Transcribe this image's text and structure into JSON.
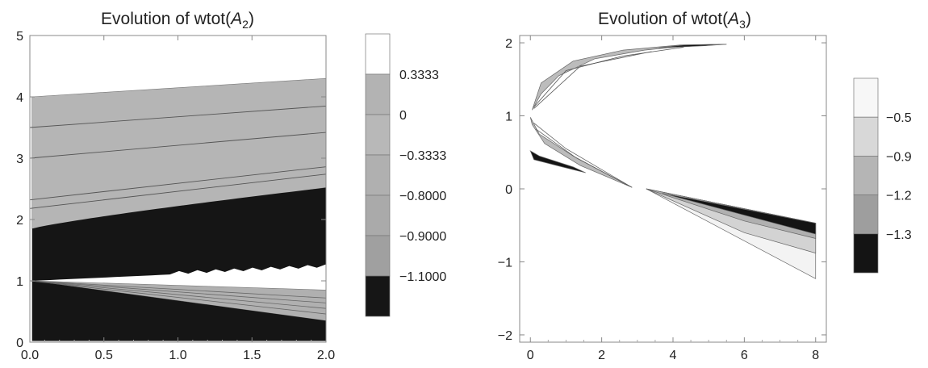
{
  "chart_data": [
    {
      "type": "contour",
      "title": "Evolution of wtot(A2)",
      "title_parts": {
        "prefix": "Evolution of wtot(",
        "var": "A",
        "sub": "2",
        "suffix": ")"
      },
      "xlim": [
        0,
        2
      ],
      "ylim": [
        0,
        5
      ],
      "x_ticks": [
        "0.0",
        "0.5",
        "1.0",
        "1.5",
        "2.0"
      ],
      "y_ticks": [
        "0",
        "1",
        "2",
        "3",
        "4",
        "5"
      ],
      "legend_levels": [
        "0.3333",
        "0",
        "-0.3333",
        "-0.8000",
        "-0.9000",
        "-1.1000"
      ],
      "legend_labels": [
        "0.3333",
        "0",
        "−0.3333",
        "−0.8000",
        "−0.9000",
        "−1.1000"
      ],
      "legend_colors": [
        "#ffffff",
        "#b3b3b3",
        "#b8b8b8",
        "#b0b0b0",
        "#aaaaaa",
        "#a0a0a0",
        "#161616"
      ],
      "regions": {
        "upper_band": {
          "y_at_x0": [
            1.85,
            4.0
          ],
          "y_at_x2": [
            2.52,
            4.3
          ],
          "color": "#b5b5b5"
        },
        "upper_dark": {
          "y_at_x0": [
            1.0,
            1.85
          ],
          "y_at_x2": [
            1.2,
            2.52
          ],
          "color": "#151515"
        },
        "lower_band": {
          "y_at_x0": [
            1.0,
            1.0
          ],
          "y_at_x2": [
            0.35,
            0.85
          ],
          "color": "#b0b0b0"
        },
        "lower_dark": {
          "y_at_x0": [
            0.0,
            1.0
          ],
          "y_at_x2": [
            0.0,
            0.35
          ],
          "color": "#151515"
        }
      },
      "contour_lines_upper": [
        {
          "x": [
            0,
            2
          ],
          "y": [
            3.5,
            3.85
          ]
        },
        {
          "x": [
            0,
            2
          ],
          "y": [
            3.0,
            3.42
          ]
        },
        {
          "x": [
            0,
            2
          ],
          "y": [
            2.32,
            2.86
          ]
        },
        {
          "x": [
            0,
            2
          ],
          "y": [
            2.18,
            2.74
          ]
        }
      ],
      "contour_lines_lower": [
        {
          "x": [
            0,
            2
          ],
          "y": [
            1.0,
            0.72
          ]
        },
        {
          "x": [
            0,
            2
          ],
          "y": [
            1.0,
            0.64
          ]
        },
        {
          "x": [
            0,
            2
          ],
          "y": [
            1.0,
            0.55
          ]
        },
        {
          "x": [
            0,
            2
          ],
          "y": [
            1.0,
            0.46
          ]
        }
      ]
    },
    {
      "type": "contour",
      "title": "Evolution of wtot(A3)",
      "title_parts": {
        "prefix": "Evolution of wtot(",
        "var": "A",
        "sub": "3",
        "suffix": ")"
      },
      "xlim": [
        -0.3,
        8.3
      ],
      "ylim": [
        -2.1,
        2.1
      ],
      "x_ticks": [
        "0",
        "2",
        "4",
        "6",
        "8"
      ],
      "y_ticks": [
        "-2",
        "-1",
        "0",
        "1",
        "2"
      ],
      "y_tick_labels": [
        "−2",
        "−1",
        "0",
        "1",
        "2"
      ],
      "legend_levels": [
        "-0.5",
        "-0.9",
        "-1.2",
        "-1.3"
      ],
      "legend_labels": [
        "−0.5",
        "−0.9",
        "−1.2",
        "−1.3"
      ],
      "legend_colors": [
        "#f7f7f7",
        "#d8d8d8",
        "#b5b5b5",
        "#9e9e9e",
        "#141414"
      ],
      "regions": {
        "top_parabola": {
          "points": [
            [
              0.05,
              1.08
            ],
            [
              0.3,
              1.45
            ],
            [
              1.2,
              1.75
            ],
            [
              2.6,
              1.9
            ],
            [
              4.2,
              1.97
            ],
            [
              5.5,
              1.98
            ],
            [
              4.6,
              1.97
            ],
            [
              3.2,
              1.9
            ],
            [
              1.8,
              1.78
            ],
            [
              0.8,
              1.55
            ],
            [
              0.3,
              1.3
            ]
          ],
          "color": "#bcbcbc"
        },
        "top_dark": {
          "points": [
            [
              3.6,
              1.93
            ],
            [
              4.3,
              1.97
            ],
            [
              5.5,
              1.98
            ],
            [
              4.9,
              1.96
            ]
          ],
          "color": "#141414"
        },
        "mid_wedge": {
          "points": [
            [
              0.0,
              0.98
            ],
            [
              0.25,
              0.75
            ],
            [
              1.2,
              0.45
            ],
            [
              2.85,
              0.02
            ],
            [
              1.4,
              0.32
            ],
            [
              0.4,
              0.62
            ],
            [
              0.05,
              0.88
            ]
          ],
          "color": "#bbbbbb"
        },
        "dark_sliver": {
          "points": [
            [
              0.0,
              0.52
            ],
            [
              0.25,
              0.45
            ],
            [
              1.2,
              0.3
            ],
            [
              1.55,
              0.22
            ],
            [
              0.9,
              0.3
            ],
            [
              0.1,
              0.4
            ]
          ],
          "color": "#141414"
        },
        "lower_fan": {
          "points": [
            [
              3.25,
              0.0
            ],
            [
              8.0,
              -0.47
            ],
            [
              8.0,
              -1.23
            ]
          ],
          "color": "#f3f3f3"
        },
        "lower_fan_mid": {
          "points": [
            [
              3.25,
              0.0
            ],
            [
              8.0,
              -0.47
            ],
            [
              8.0,
              -0.88
            ],
            [
              6.0,
              -0.6
            ]
          ],
          "color": "#d3d3d3"
        },
        "lower_fan_grey": {
          "points": [
            [
              3.25,
              0.0
            ],
            [
              8.0,
              -0.47
            ],
            [
              8.0,
              -0.68
            ],
            [
              6.0,
              -0.44
            ]
          ],
          "color": "#b0b0b0"
        },
        "lower_fan_dark": {
          "points": [
            [
              3.7,
              -0.06
            ],
            [
              8.0,
              -0.47
            ],
            [
              8.0,
              -0.62
            ],
            [
              6.0,
              -0.36
            ]
          ],
          "color": "#141414"
        }
      }
    }
  ]
}
